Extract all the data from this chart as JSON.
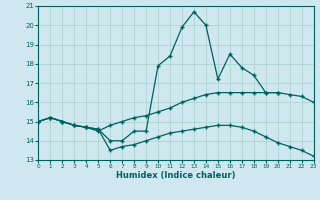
{
  "x": [
    0,
    1,
    2,
    3,
    4,
    5,
    6,
    7,
    8,
    9,
    10,
    11,
    12,
    13,
    14,
    15,
    16,
    17,
    18,
    19,
    20,
    21,
    22,
    23
  ],
  "line_max": [
    15.0,
    15.2,
    15.0,
    14.8,
    14.7,
    14.6,
    14.0,
    14.0,
    14.5,
    14.5,
    17.9,
    18.4,
    19.9,
    20.7,
    20.0,
    17.2,
    18.5,
    17.8,
    17.4,
    16.5,
    16.5,
    null,
    null,
    null
  ],
  "line_mid": [
    15.0,
    15.2,
    15.0,
    14.8,
    14.7,
    14.5,
    14.8,
    15.0,
    15.2,
    15.3,
    15.5,
    15.7,
    16.0,
    16.2,
    16.4,
    16.5,
    16.5,
    16.5,
    16.5,
    16.5,
    16.5,
    16.4,
    16.3,
    16.0
  ],
  "line_min": [
    15.0,
    15.2,
    15.0,
    14.8,
    14.7,
    14.6,
    13.5,
    13.7,
    13.8,
    14.0,
    14.2,
    14.4,
    14.5,
    14.6,
    14.7,
    14.8,
    14.8,
    14.7,
    14.5,
    14.2,
    13.9,
    13.7,
    13.5,
    13.2
  ],
  "bg_color": "#cfe8f0",
  "grid_color": "#a8d0c8",
  "line_color": "#006060",
  "xlabel": "Humidex (Indice chaleur)",
  "xlim": [
    0,
    23
  ],
  "ylim": [
    13,
    21
  ],
  "yticks": [
    13,
    14,
    15,
    16,
    17,
    18,
    19,
    20,
    21
  ],
  "xticks": [
    0,
    1,
    2,
    3,
    4,
    5,
    6,
    7,
    8,
    9,
    10,
    11,
    12,
    13,
    14,
    15,
    16,
    17,
    18,
    19,
    20,
    21,
    22,
    23
  ]
}
